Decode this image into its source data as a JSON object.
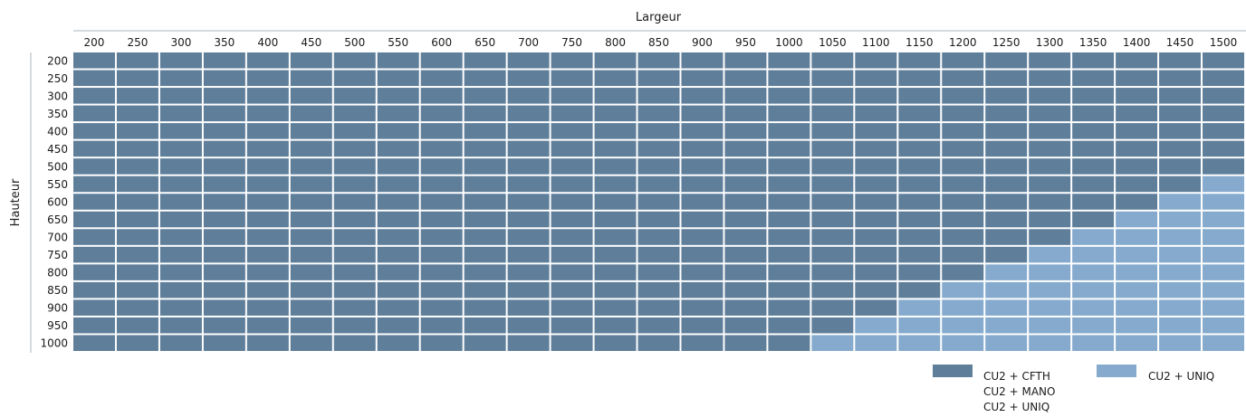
{
  "chart_data": {
    "type": "heatmap",
    "xlabel": "Largeur",
    "ylabel": "Hauteur",
    "x_categories": [
      "200",
      "250",
      "300",
      "350",
      "400",
      "450",
      "500",
      "550",
      "600",
      "650",
      "700",
      "750",
      "800",
      "850",
      "900",
      "950",
      "1000",
      "1050",
      "1100",
      "1150",
      "1200",
      "1250",
      "1300",
      "1350",
      "1400",
      "1450",
      "1500"
    ],
    "y_categories": [
      "200",
      "250",
      "300",
      "350",
      "400",
      "450",
      "500",
      "550",
      "600",
      "650",
      "700",
      "750",
      "800",
      "850",
      "900",
      "950",
      "1000"
    ],
    "series": [
      {
        "name": "CU2 + CFTH\nCU2 + MANO\nCU2 + UNIQ",
        "color": "#5e7e9a"
      },
      {
        "name": "CU2 + UNIQ",
        "color": "#85aacd"
      }
    ],
    "values": [
      [
        0,
        0,
        0,
        0,
        0,
        0,
        0,
        0,
        0,
        0,
        0,
        0,
        0,
        0,
        0,
        0,
        0,
        0,
        0,
        0,
        0,
        0,
        0,
        0,
        0,
        0,
        0
      ],
      [
        0,
        0,
        0,
        0,
        0,
        0,
        0,
        0,
        0,
        0,
        0,
        0,
        0,
        0,
        0,
        0,
        0,
        0,
        0,
        0,
        0,
        0,
        0,
        0,
        0,
        0,
        0
      ],
      [
        0,
        0,
        0,
        0,
        0,
        0,
        0,
        0,
        0,
        0,
        0,
        0,
        0,
        0,
        0,
        0,
        0,
        0,
        0,
        0,
        0,
        0,
        0,
        0,
        0,
        0,
        0
      ],
      [
        0,
        0,
        0,
        0,
        0,
        0,
        0,
        0,
        0,
        0,
        0,
        0,
        0,
        0,
        0,
        0,
        0,
        0,
        0,
        0,
        0,
        0,
        0,
        0,
        0,
        0,
        0
      ],
      [
        0,
        0,
        0,
        0,
        0,
        0,
        0,
        0,
        0,
        0,
        0,
        0,
        0,
        0,
        0,
        0,
        0,
        0,
        0,
        0,
        0,
        0,
        0,
        0,
        0,
        0,
        0
      ],
      [
        0,
        0,
        0,
        0,
        0,
        0,
        0,
        0,
        0,
        0,
        0,
        0,
        0,
        0,
        0,
        0,
        0,
        0,
        0,
        0,
        0,
        0,
        0,
        0,
        0,
        0,
        0
      ],
      [
        0,
        0,
        0,
        0,
        0,
        0,
        0,
        0,
        0,
        0,
        0,
        0,
        0,
        0,
        0,
        0,
        0,
        0,
        0,
        0,
        0,
        0,
        0,
        0,
        0,
        0,
        0
      ],
      [
        0,
        0,
        0,
        0,
        0,
        0,
        0,
        0,
        0,
        0,
        0,
        0,
        0,
        0,
        0,
        0,
        0,
        0,
        0,
        0,
        0,
        0,
        0,
        0,
        0,
        0,
        1
      ],
      [
        0,
        0,
        0,
        0,
        0,
        0,
        0,
        0,
        0,
        0,
        0,
        0,
        0,
        0,
        0,
        0,
        0,
        0,
        0,
        0,
        0,
        0,
        0,
        0,
        0,
        1,
        1
      ],
      [
        0,
        0,
        0,
        0,
        0,
        0,
        0,
        0,
        0,
        0,
        0,
        0,
        0,
        0,
        0,
        0,
        0,
        0,
        0,
        0,
        0,
        0,
        0,
        0,
        1,
        1,
        1
      ],
      [
        0,
        0,
        0,
        0,
        0,
        0,
        0,
        0,
        0,
        0,
        0,
        0,
        0,
        0,
        0,
        0,
        0,
        0,
        0,
        0,
        0,
        0,
        0,
        1,
        1,
        1,
        1
      ],
      [
        0,
        0,
        0,
        0,
        0,
        0,
        0,
        0,
        0,
        0,
        0,
        0,
        0,
        0,
        0,
        0,
        0,
        0,
        0,
        0,
        0,
        0,
        1,
        1,
        1,
        1,
        1
      ],
      [
        0,
        0,
        0,
        0,
        0,
        0,
        0,
        0,
        0,
        0,
        0,
        0,
        0,
        0,
        0,
        0,
        0,
        0,
        0,
        0,
        0,
        1,
        1,
        1,
        1,
        1,
        1
      ],
      [
        0,
        0,
        0,
        0,
        0,
        0,
        0,
        0,
        0,
        0,
        0,
        0,
        0,
        0,
        0,
        0,
        0,
        0,
        0,
        0,
        1,
        1,
        1,
        1,
        1,
        1,
        1
      ],
      [
        0,
        0,
        0,
        0,
        0,
        0,
        0,
        0,
        0,
        0,
        0,
        0,
        0,
        0,
        0,
        0,
        0,
        0,
        0,
        1,
        1,
        1,
        1,
        1,
        1,
        1,
        1
      ],
      [
        0,
        0,
        0,
        0,
        0,
        0,
        0,
        0,
        0,
        0,
        0,
        0,
        0,
        0,
        0,
        0,
        0,
        0,
        1,
        1,
        1,
        1,
        1,
        1,
        1,
        1,
        1
      ],
      [
        0,
        0,
        0,
        0,
        0,
        0,
        0,
        0,
        0,
        0,
        0,
        0,
        0,
        0,
        0,
        0,
        0,
        1,
        1,
        1,
        1,
        1,
        1,
        1,
        1,
        1,
        1
      ]
    ],
    "legend": [
      "CU2 + CFTH",
      "CU2 + MANO",
      "CU2 + UNIQ",
      "CU2 + UNIQ"
    ],
    "legend_position": "bottom-right",
    "grid": true
  }
}
